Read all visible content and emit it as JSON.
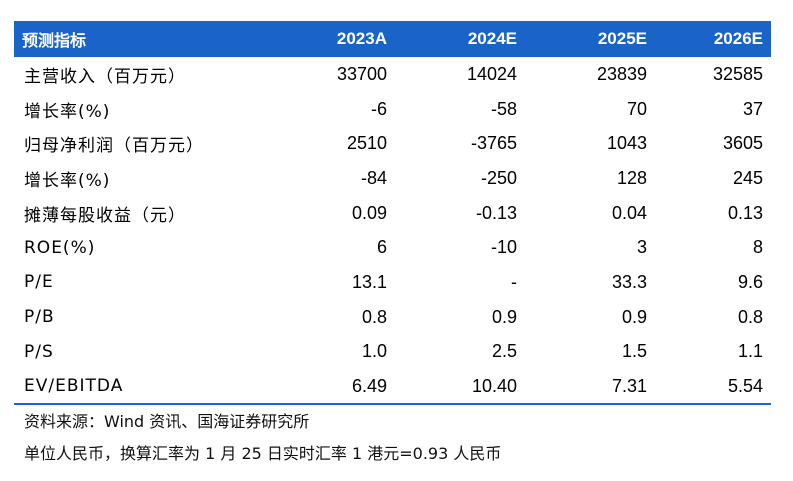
{
  "colors": {
    "header_background": "#1a63c9",
    "header_text": "#ffffff",
    "rule": "#1a63c9"
  },
  "table": {
    "headers": [
      "预测指标",
      "2023A",
      "2024E",
      "2025E",
      "2026E"
    ],
    "rows": [
      [
        "主营收入（百万元）",
        "33700",
        "14024",
        "23839",
        "32585"
      ],
      [
        "增长率(%)",
        "-6",
        "-58",
        "70",
        "37"
      ],
      [
        "归母净利润（百万元）",
        "2510",
        "-3765",
        "1043",
        "3605"
      ],
      [
        "增长率(%)",
        "-84",
        "-250",
        "128",
        "245"
      ],
      [
        "摊薄每股收益（元）",
        "0.09",
        "-0.13",
        "0.04",
        "0.13"
      ],
      [
        "ROE(%)",
        "6",
        "-10",
        "3",
        "8"
      ],
      [
        "P/E",
        "13.1",
        "-",
        "33.3",
        "9.6"
      ],
      [
        "P/B",
        "0.8",
        "0.9",
        "0.9",
        "0.8"
      ],
      [
        "P/S",
        "1.0",
        "2.5",
        "1.5",
        "1.1"
      ],
      [
        "EV/EBITDA",
        "6.49",
        "10.40",
        "7.31",
        "5.54"
      ]
    ]
  },
  "notes": {
    "source": "资料来源：Wind 资讯、国海证券研究所",
    "unit": "单位人民币，换算汇率为 1 月 25 日实时汇率 1 港元=0.93 人民币"
  }
}
